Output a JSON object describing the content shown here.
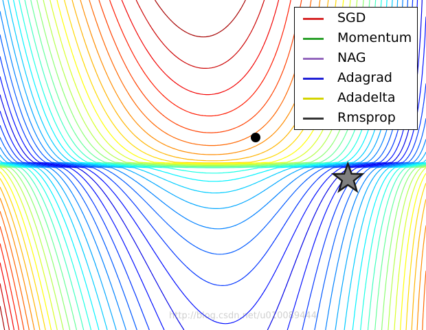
{
  "chart_data": {
    "type": "contour",
    "title": "",
    "xlabel": "",
    "ylabel": "",
    "xlim": [
      -1.5,
      1.5
    ],
    "ylim": [
      -1.2,
      1.2
    ],
    "function": "saddle with sharp valley along y = 0",
    "colormap": "jet",
    "levels": 48,
    "legend_position": "top-right",
    "series": [
      {
        "name": "SGD",
        "color": "#d62728"
      },
      {
        "name": "Momentum",
        "color": "#2ca02c"
      },
      {
        "name": "NAG",
        "color": "#9467bd"
      },
      {
        "name": "Adagrad",
        "color": "#1f1fd6"
      },
      {
        "name": "Adadelta",
        "color": "#d4d400"
      },
      {
        "name": "Rmsprop",
        "color": "#333333"
      }
    ],
    "start_point": {
      "x": 0.3,
      "y": 0.2
    },
    "goal_point": {
      "x": 0.95,
      "y": -0.1
    }
  },
  "watermark": "http://blog.csdn.net/u010089444"
}
